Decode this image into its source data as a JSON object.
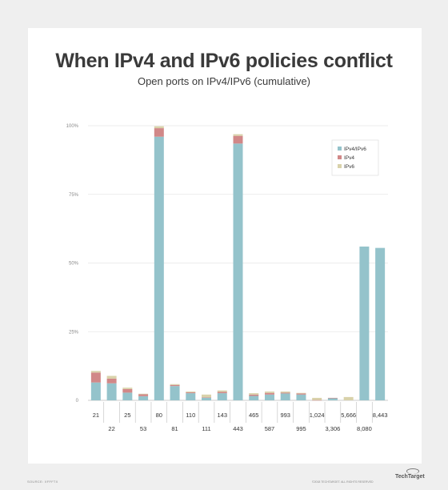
{
  "chart_data": {
    "type": "bar",
    "stacked": true,
    "title": "When IPv4 and IPv6 policies conflict",
    "subtitle": "Open ports on IPv4/IPv6 (cumulative)",
    "xlabel": "",
    "ylabel": "",
    "ylim": [
      0,
      100
    ],
    "yticks": [
      "0",
      "25%",
      "50%",
      "75%",
      "100%"
    ],
    "grid": true,
    "legend_position": "top-right",
    "categories": [
      "21",
      "22",
      "25",
      "53",
      "80",
      "81",
      "110",
      "111",
      "143",
      "443",
      "465",
      "587",
      "993",
      "995",
      "1,024",
      "3,306",
      "5,666",
      "8,080",
      "8,443"
    ],
    "series": [
      {
        "name": "IPv4/IPv6",
        "color": "#94c3cb",
        "values": [
          6.5,
          6.2,
          2.8,
          1.5,
          96,
          5.2,
          2.6,
          1.0,
          2.6,
          93.5,
          1.6,
          2.1,
          2.5,
          2.1,
          0.0,
          0.8,
          0.0,
          56,
          55.5
        ]
      },
      {
        "name": "IPv4",
        "color": "#d18888",
        "values": [
          3.6,
          1.7,
          1.3,
          0.7,
          3.1,
          0.4,
          0.3,
          0.1,
          0.5,
          2.8,
          0.5,
          0.6,
          0.3,
          0.4,
          0.1,
          0.1,
          0.0,
          0.0,
          0.0
        ]
      },
      {
        "name": "IPv6",
        "color": "#d9d2aa",
        "values": [
          0.6,
          1.0,
          0.5,
          0.2,
          0.7,
          0.3,
          0.3,
          1.0,
          0.5,
          0.6,
          0.5,
          0.5,
          0.4,
          0.2,
          0.8,
          0.0,
          1.2,
          0.0,
          0.0
        ]
      }
    ]
  },
  "footer": {
    "source": "SOURCE: XFFFTX",
    "copyright": "©2018 TECHTARGET. ALL RIGHTS RESERVED",
    "brand": "TechTarget"
  }
}
